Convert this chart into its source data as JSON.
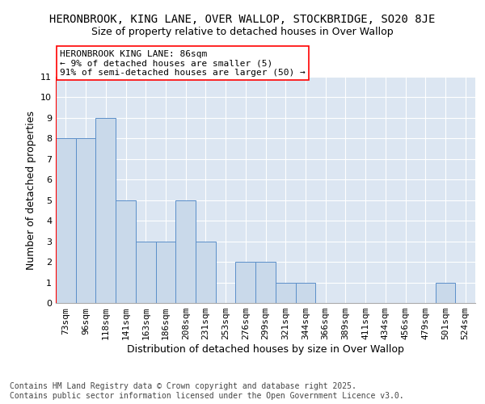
{
  "title1": "HERONBROOK, KING LANE, OVER WALLOP, STOCKBRIDGE, SO20 8JE",
  "title2": "Size of property relative to detached houses in Over Wallop",
  "xlabel": "Distribution of detached houses by size in Over Wallop",
  "ylabel": "Number of detached properties",
  "categories": [
    "73sqm",
    "96sqm",
    "118sqm",
    "141sqm",
    "163sqm",
    "186sqm",
    "208sqm",
    "231sqm",
    "253sqm",
    "276sqm",
    "299sqm",
    "321sqm",
    "344sqm",
    "366sqm",
    "389sqm",
    "411sqm",
    "434sqm",
    "456sqm",
    "479sqm",
    "501sqm",
    "524sqm"
  ],
  "values": [
    8,
    8,
    9,
    5,
    3,
    3,
    5,
    3,
    0,
    2,
    2,
    1,
    1,
    0,
    0,
    0,
    0,
    0,
    0,
    1,
    0
  ],
  "bar_color": "#c9d9ea",
  "bar_edge_color": "#5b8fc9",
  "background_color": "#dce6f2",
  "ylim": [
    0,
    11
  ],
  "yticks": [
    0,
    1,
    2,
    3,
    4,
    5,
    6,
    7,
    8,
    9,
    10,
    11
  ],
  "annotation_line1": "HERONBROOK KING LANE: 86sqm",
  "annotation_line2": "← 9% of detached houses are smaller (5)",
  "annotation_line3": "91% of semi-detached houses are larger (50) →",
  "annotation_box_color": "red",
  "vline_x": -0.5,
  "footnote": "Contains HM Land Registry data © Crown copyright and database right 2025.\nContains public sector information licensed under the Open Government Licence v3.0.",
  "title_fontsize": 10,
  "subtitle_fontsize": 9,
  "axis_label_fontsize": 9,
  "tick_fontsize": 8,
  "annotation_fontsize": 8,
  "footnote_fontsize": 7
}
